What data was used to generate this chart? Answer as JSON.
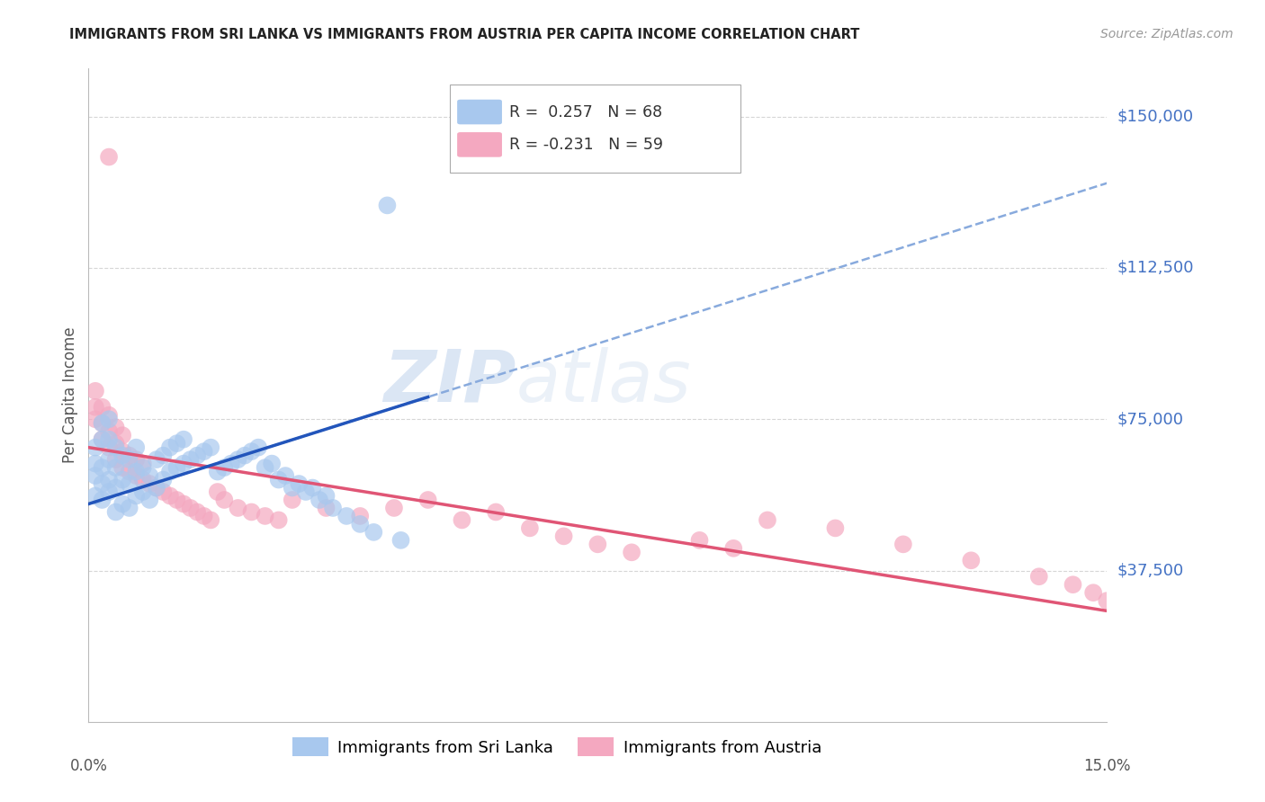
{
  "title": "IMMIGRANTS FROM SRI LANKA VS IMMIGRANTS FROM AUSTRIA PER CAPITA INCOME CORRELATION CHART",
  "source": "Source: ZipAtlas.com",
  "ylabel": "Per Capita Income",
  "yticks": [
    0,
    37500,
    75000,
    112500,
    150000
  ],
  "ytick_labels": [
    "",
    "$37,500",
    "$75,000",
    "$112,500",
    "$150,000"
  ],
  "xmin": 0.0,
  "xmax": 0.15,
  "ymin": 0,
  "ymax": 162000,
  "sri_lanka_color": "#A8C8EE",
  "austria_color": "#F4A8C0",
  "sri_lanka_R": 0.257,
  "sri_lanka_N": 68,
  "austria_R": -0.231,
  "austria_N": 59,
  "trend_blue_solid_color": "#2255BB",
  "trend_pink_solid_color": "#E05575",
  "trend_blue_dash_color": "#88AADD",
  "watermark_zip": "ZIP",
  "watermark_atlas": "atlas",
  "legend_label_1": "Immigrants from Sri Lanka",
  "legend_label_2": "Immigrants from Austria",
  "sri_lanka_x": [
    0.001,
    0.001,
    0.001,
    0.001,
    0.002,
    0.002,
    0.002,
    0.002,
    0.002,
    0.003,
    0.003,
    0.003,
    0.003,
    0.003,
    0.004,
    0.004,
    0.004,
    0.004,
    0.005,
    0.005,
    0.005,
    0.006,
    0.006,
    0.006,
    0.007,
    0.007,
    0.007,
    0.008,
    0.008,
    0.009,
    0.009,
    0.01,
    0.01,
    0.011,
    0.011,
    0.012,
    0.012,
    0.013,
    0.013,
    0.014,
    0.014,
    0.015,
    0.016,
    0.017,
    0.018,
    0.019,
    0.02,
    0.021,
    0.022,
    0.023,
    0.024,
    0.025,
    0.026,
    0.027,
    0.028,
    0.029,
    0.03,
    0.031,
    0.032,
    0.033,
    0.034,
    0.035,
    0.036,
    0.038,
    0.04,
    0.042,
    0.044,
    0.046
  ],
  "sri_lanka_y": [
    56000,
    61000,
    64000,
    68000,
    55000,
    59000,
    63000,
    70000,
    74000,
    57000,
    60000,
    65000,
    70000,
    75000,
    52000,
    58000,
    63000,
    68000,
    54000,
    60000,
    66000,
    53000,
    59000,
    65000,
    56000,
    62000,
    68000,
    57000,
    63000,
    55000,
    61000,
    58000,
    65000,
    60000,
    66000,
    62000,
    68000,
    63000,
    69000,
    64000,
    70000,
    65000,
    66000,
    67000,
    68000,
    62000,
    63000,
    64000,
    65000,
    66000,
    67000,
    68000,
    63000,
    64000,
    60000,
    61000,
    58000,
    59000,
    57000,
    58000,
    55000,
    56000,
    53000,
    51000,
    49000,
    47000,
    128000,
    45000
  ],
  "austria_x": [
    0.001,
    0.001,
    0.001,
    0.002,
    0.002,
    0.002,
    0.003,
    0.003,
    0.003,
    0.004,
    0.004,
    0.004,
    0.005,
    0.005,
    0.005,
    0.006,
    0.006,
    0.007,
    0.007,
    0.008,
    0.008,
    0.009,
    0.01,
    0.011,
    0.012,
    0.013,
    0.014,
    0.015,
    0.016,
    0.017,
    0.018,
    0.019,
    0.02,
    0.022,
    0.024,
    0.026,
    0.028,
    0.03,
    0.035,
    0.04,
    0.045,
    0.05,
    0.055,
    0.06,
    0.065,
    0.07,
    0.075,
    0.08,
    0.09,
    0.095,
    0.1,
    0.11,
    0.12,
    0.13,
    0.14,
    0.145,
    0.148,
    0.15,
    0.003
  ],
  "austria_y": [
    75000,
    78000,
    82000,
    70000,
    74000,
    78000,
    68000,
    72000,
    76000,
    65000,
    69000,
    73000,
    63000,
    67000,
    71000,
    62000,
    66000,
    61000,
    65000,
    60000,
    64000,
    59000,
    58000,
    57000,
    56000,
    55000,
    54000,
    53000,
    52000,
    51000,
    50000,
    57000,
    55000,
    53000,
    52000,
    51000,
    50000,
    55000,
    53000,
    51000,
    53000,
    55000,
    50000,
    52000,
    48000,
    46000,
    44000,
    42000,
    45000,
    43000,
    50000,
    48000,
    44000,
    40000,
    36000,
    34000,
    32000,
    30000,
    140000
  ]
}
